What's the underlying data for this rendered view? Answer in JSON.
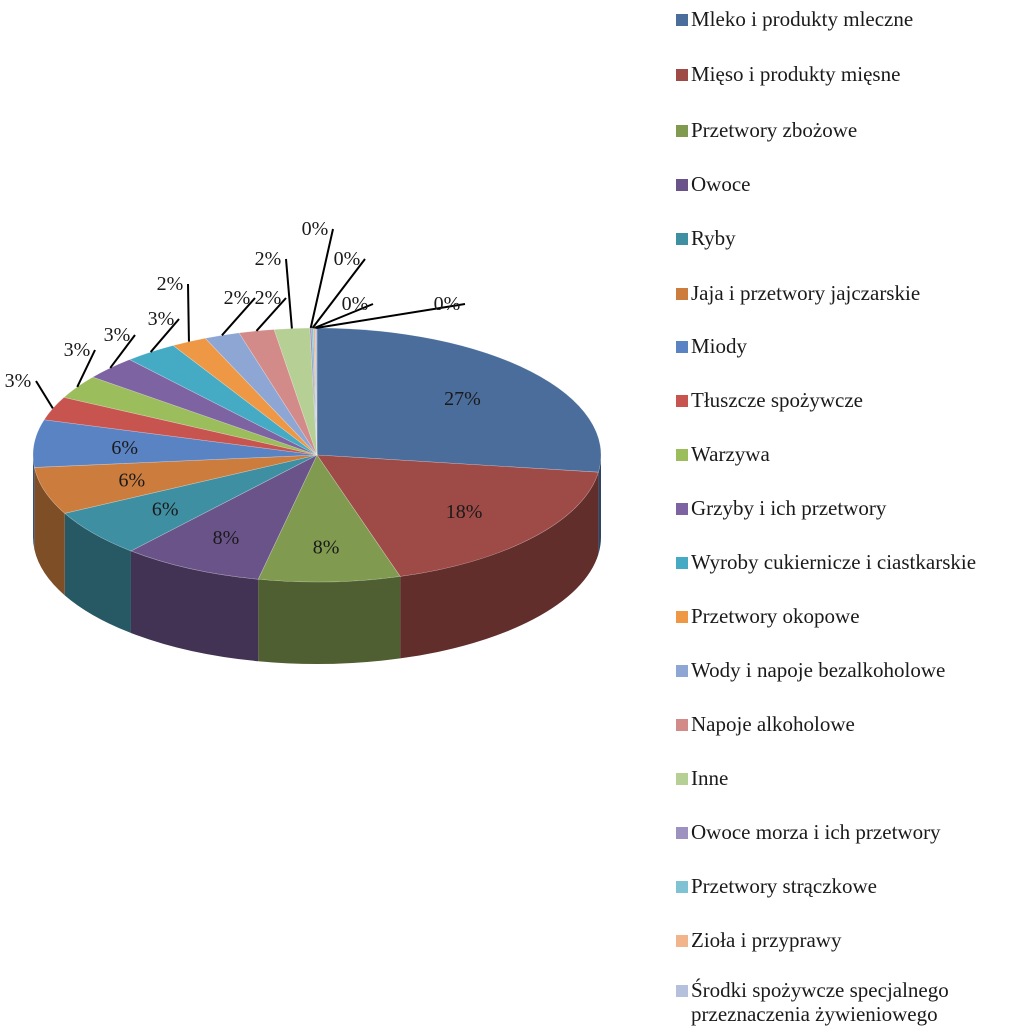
{
  "chart_data": {
    "type": "pie",
    "style": "3d",
    "title": "",
    "legend_position": "right",
    "categories": [
      "Mleko i produkty mleczne",
      "Mięso i produkty mięsne",
      "Przetwory zbożowe",
      "Owoce",
      "Ryby",
      "Jaja i przetwory jajczarskie",
      "Miody",
      "Tłuszcze spożywcze",
      "Warzywa",
      "Grzyby i ich przetwory",
      "Wyroby cukiernicze i ciastkarskie",
      "Przetwory okopowe",
      "Wody i napoje bezalkoholowe",
      "Napoje alkoholowe",
      "Inne",
      "Owoce morza i ich przetwory",
      "Przetwory strączkowe",
      "Zioła i przyprawy",
      "Środki spożywcze specjalnego\nprzeznaczenia żywieniowego"
    ],
    "values": [
      27,
      18,
      8,
      8,
      6,
      6,
      6,
      3,
      3,
      3,
      3,
      2,
      2,
      2,
      2,
      0.1,
      0.1,
      0.1,
      0.1
    ],
    "labels": [
      "27%",
      "18%",
      "8%",
      "8%",
      "6%",
      "6%",
      "6%",
      "3%",
      "3%",
      "3%",
      "3%",
      "2%",
      "2%",
      "2%",
      "2%",
      "0%",
      "0%",
      "0%",
      "0%"
    ],
    "colors": [
      "#4a6d9c",
      "#9e4a47",
      "#809a4f",
      "#6a5389",
      "#3f8fa3",
      "#cc7d3e",
      "#5a83c4",
      "#c85450",
      "#9bbd5c",
      "#7d63a1",
      "#45abc4",
      "#ee9845",
      "#8ea6d4",
      "#d38b89",
      "#b5cf94",
      "#9d92bf",
      "#7ec2d4",
      "#f2b48a",
      "#b4c0dc"
    ]
  }
}
